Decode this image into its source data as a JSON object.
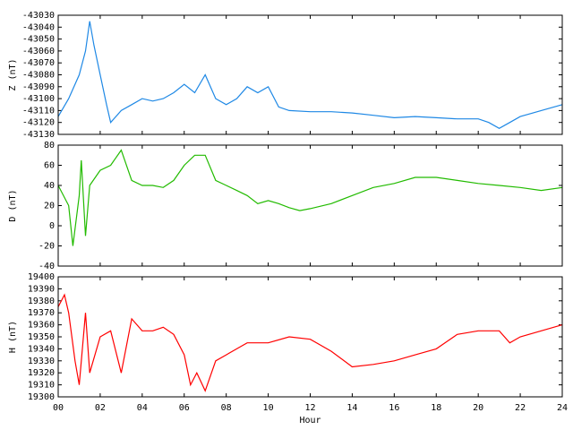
{
  "chart_data": [
    {
      "type": "line",
      "ylabel": "Z (nT)",
      "x": [
        0,
        0.5,
        1,
        1.3,
        1.5,
        1.7,
        2,
        2.3,
        2.5,
        3,
        3.5,
        4,
        4.5,
        5,
        5.5,
        6,
        6.5,
        7,
        7.5,
        8,
        8.5,
        9,
        9.5,
        10,
        10.5,
        11,
        12,
        13,
        14,
        15,
        16,
        17,
        18,
        19,
        20,
        20.5,
        21,
        21.5,
        22,
        23,
        24
      ],
      "series": [
        {
          "name": "Z",
          "color": "#1e88e5",
          "values": [
            -43115,
            -43100,
            -43080,
            -43060,
            -43035,
            -43055,
            -43080,
            -43105,
            -43120,
            -43110,
            -43105,
            -43100,
            -43102,
            -43100,
            -43095,
            -43088,
            -43095,
            -43080,
            -43100,
            -43105,
            -43100,
            -43090,
            -43095,
            -43090,
            -43107,
            -43110,
            -43111,
            -43111,
            -43112,
            -43114,
            -43116,
            -43115,
            -43116,
            -43117,
            -43117,
            -43120,
            -43125,
            -43120,
            -43115,
            -43110,
            -43105
          ]
        }
      ],
      "xlim": [
        0,
        24
      ],
      "xticks": [
        0,
        2,
        4,
        6,
        8,
        10,
        12,
        14,
        16,
        18,
        20,
        22,
        24
      ],
      "ylim": [
        -43130,
        -43030
      ],
      "yticks": [
        -43130,
        -43120,
        -43110,
        -43100,
        -43090,
        -43080,
        -43070,
        -43060,
        -43050,
        -43040,
        -43030
      ]
    },
    {
      "type": "line",
      "ylabel": "D (nT)",
      "x": [
        0,
        0.5,
        0.7,
        1,
        1.1,
        1.3,
        1.5,
        2,
        2.5,
        3,
        3.5,
        4,
        4.5,
        5,
        5.5,
        6,
        6.5,
        7,
        7.5,
        8,
        8.5,
        9,
        9.5,
        10,
        10.5,
        11,
        11.5,
        12,
        13,
        14,
        15,
        16,
        17,
        18,
        19,
        20,
        21,
        22,
        23,
        24
      ],
      "series": [
        {
          "name": "D",
          "color": "#22bb00",
          "values": [
            40,
            20,
            -20,
            30,
            65,
            -10,
            40,
            55,
            60,
            75,
            45,
            40,
            40,
            38,
            45,
            60,
            70,
            70,
            45,
            40,
            35,
            30,
            22,
            25,
            22,
            18,
            15,
            17,
            22,
            30,
            38,
            42,
            48,
            48,
            45,
            42,
            40,
            38,
            35,
            38
          ]
        }
      ],
      "xlim": [
        0,
        24
      ],
      "xticks": [
        0,
        2,
        4,
        6,
        8,
        10,
        12,
        14,
        16,
        18,
        20,
        22,
        24
      ],
      "ylim": [
        -40,
        80
      ],
      "yticks": [
        -40,
        -20,
        0,
        20,
        40,
        60,
        80
      ]
    },
    {
      "type": "line",
      "ylabel": "H (nT)",
      "xlabel": "Hour",
      "x": [
        0,
        0.3,
        0.5,
        0.8,
        1,
        1.3,
        1.5,
        2,
        2.5,
        3,
        3.5,
        4,
        4.5,
        5,
        5.5,
        6,
        6.3,
        6.6,
        7,
        7.5,
        8,
        8.5,
        9,
        9.5,
        10,
        11,
        12,
        13,
        14,
        15,
        16,
        17,
        18,
        19,
        20,
        21,
        21.5,
        22,
        23,
        24
      ],
      "series": [
        {
          "name": "H",
          "color": "#ff0000",
          "values": [
            19375,
            19385,
            19370,
            19330,
            19310,
            19370,
            19320,
            19350,
            19355,
            19320,
            19365,
            19355,
            19355,
            19358,
            19352,
            19335,
            19310,
            19320,
            19305,
            19330,
            19335,
            19340,
            19345,
            19345,
            19345,
            19350,
            19348,
            19338,
            19325,
            19327,
            19330,
            19335,
            19340,
            19352,
            19355,
            19355,
            19345,
            19350,
            19355,
            19360
          ]
        }
      ],
      "xlim": [
        0,
        24
      ],
      "xticks": [
        {
          "value": 0,
          "label": "00"
        },
        {
          "value": 2,
          "label": "02"
        },
        {
          "value": 4,
          "label": "04"
        },
        {
          "value": 6,
          "label": "06"
        },
        {
          "value": 8,
          "label": "08"
        },
        {
          "value": 10,
          "label": "10"
        },
        {
          "value": 12,
          "label": "12"
        },
        {
          "value": 14,
          "label": "14"
        },
        {
          "value": 16,
          "label": "16"
        },
        {
          "value": 18,
          "label": "18"
        },
        {
          "value": 20,
          "label": "20"
        },
        {
          "value": 22,
          "label": "22"
        },
        {
          "value": 24,
          "label": "24"
        }
      ],
      "ylim": [
        19300,
        19400
      ],
      "yticks": [
        19300,
        19310,
        19320,
        19330,
        19340,
        19350,
        19360,
        19370,
        19380,
        19390,
        19400
      ]
    }
  ]
}
